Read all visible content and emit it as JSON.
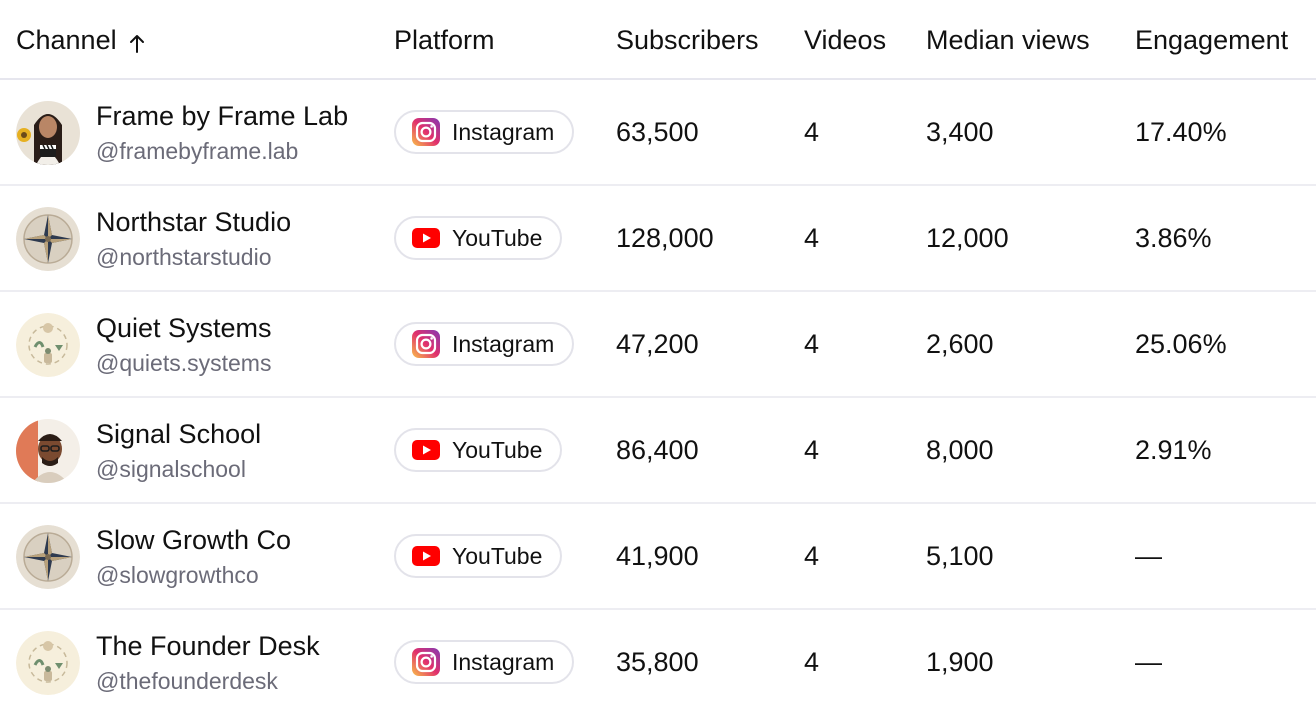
{
  "columns": {
    "channel": "Channel",
    "platform": "Platform",
    "subscribers": "Subscribers",
    "videos": "Videos",
    "median_views": "Median views",
    "engagement": "Engagement"
  },
  "sort": {
    "column": "channel",
    "direction": "ascending",
    "icon": "arrow-up-icon"
  },
  "rows": [
    {
      "name": "Frame by Frame Lab",
      "handle": "@framebyframe.lab",
      "platform": "Instagram",
      "platform_icon": "instagram-icon",
      "avatar": "avatar-woman-clapperboard",
      "subscribers": "63,500",
      "videos": "4",
      "median_views": "3,400",
      "engagement": "17.40%"
    },
    {
      "name": "Northstar Studio",
      "handle": "@northstarstudio",
      "platform": "YouTube",
      "platform_icon": "youtube-icon",
      "avatar": "avatar-compass",
      "subscribers": "128,000",
      "videos": "4",
      "median_views": "12,000",
      "engagement": "3.86%"
    },
    {
      "name": "Quiet Systems",
      "handle": "@quiets.systems",
      "platform": "Instagram",
      "platform_icon": "instagram-icon",
      "avatar": "avatar-cycle-illustration",
      "subscribers": "47,200",
      "videos": "4",
      "median_views": "2,600",
      "engagement": "25.06%"
    },
    {
      "name": "Signal School",
      "handle": "@signalschool",
      "platform": "YouTube",
      "platform_icon": "youtube-icon",
      "avatar": "avatar-man-glasses",
      "subscribers": "86,400",
      "videos": "4",
      "median_views": "8,000",
      "engagement": "2.91%"
    },
    {
      "name": "Slow Growth Co",
      "handle": "@slowgrowthco",
      "platform": "YouTube",
      "platform_icon": "youtube-icon",
      "avatar": "avatar-compass",
      "subscribers": "41,900",
      "videos": "4",
      "median_views": "5,100",
      "engagement": "—"
    },
    {
      "name": "The Founder Desk",
      "handle": "@thefounderdesk",
      "platform": "Instagram",
      "platform_icon": "instagram-icon",
      "avatar": "avatar-cycle-illustration",
      "subscribers": "35,800",
      "videos": "4",
      "median_views": "1,900",
      "engagement": "—"
    }
  ],
  "colors": {
    "youtube_red": "#ff0000",
    "instagram_gradient": [
      "#f9c04a",
      "#e1306c",
      "#833ab4"
    ],
    "handle_gray": "#6b6b78",
    "row_border": "#ededf2"
  }
}
